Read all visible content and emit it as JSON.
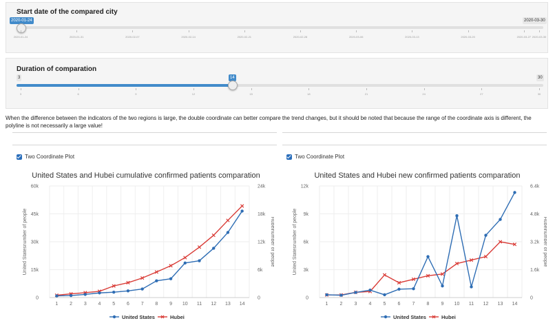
{
  "slider_start": {
    "label": "Start date of the compared city",
    "min": "2020-01-24",
    "max": "2020-03-30",
    "value": "2020-01-24",
    "ticks": [
      "2020-01-24",
      "2020-01-31",
      "2020-02-07",
      "2020-02-14",
      "2020-02-21",
      "2020-02-28",
      "2020-03-06",
      "2020-03-13",
      "2020-03-20",
      "2020-03-27",
      "2020-03-30"
    ]
  },
  "slider_duration": {
    "label": "Duration of comparation",
    "min": "3",
    "max": "30",
    "value": "14",
    "ticks": [
      "3",
      "6",
      "9",
      "12",
      "15",
      "18",
      "21",
      "24",
      "27",
      "30"
    ]
  },
  "note": "When the difference between the indicators of the two regions is large, the double coordinate can better compare the trend changes, but it should be noted that because the range of the coordinate axis is different, the polyline is not necessarily a large value!",
  "left_panel": {
    "checkbox_label": "Two Coordinate Plot",
    "checked": true
  },
  "right_panel": {
    "checkbox_label": "Two Coordinate Plot",
    "checked": true
  },
  "colors": {
    "us": "#2e6db4",
    "hubei": "#d93b36",
    "accent": "#428bca"
  },
  "chart_data": [
    {
      "type": "line",
      "title": "United States and Hubei cumulative confirmed patients comparation",
      "ylabel": "United Statesnumber of people",
      "y2label": "Hubeinumber of people",
      "x": [
        1,
        2,
        3,
        4,
        5,
        6,
        7,
        8,
        9,
        10,
        11,
        12,
        13,
        14
      ],
      "ylim": [
        0,
        60000
      ],
      "y2lim": [
        0,
        24000
      ],
      "y_ticks": [
        "0",
        "15k",
        "30k",
        "45k",
        "60k"
      ],
      "y2_ticks": [
        "0",
        "6k",
        "12k",
        "18k",
        "24k"
      ],
      "series": [
        {
          "name": "United States",
          "axis": "left",
          "values": [
            900,
            1100,
            1700,
            2500,
            2900,
            3600,
            4600,
            9000,
            10100,
            18600,
            19800,
            26500,
            35000,
            46500
          ]
        },
        {
          "name": "Hubei",
          "axis": "right",
          "values": [
            500,
            800,
            1050,
            1350,
            2500,
            3200,
            4200,
            5500,
            6850,
            8600,
            10850,
            13400,
            16600,
            19700
          ]
        }
      ],
      "legend": "bottom"
    },
    {
      "type": "line",
      "title": "United States and Hubei new confirmed patients comparation",
      "ylabel": "United Statesnumber of people",
      "y2label": "Hubeinumber of people",
      "x": [
        1,
        2,
        3,
        4,
        5,
        6,
        7,
        8,
        9,
        10,
        11,
        12,
        13,
        14
      ],
      "ylim": [
        0,
        12000
      ],
      "y2lim": [
        0,
        6400
      ],
      "y_ticks": [
        "0",
        "3k",
        "6k",
        "9k",
        "12k"
      ],
      "y2_ticks": [
        "0",
        "1.6k",
        "3.2k",
        "4.8k",
        "6.4k"
      ],
      "series": [
        {
          "name": "United States",
          "axis": "left",
          "values": [
            300,
            250,
            550,
            800,
            300,
            900,
            950,
            4400,
            1250,
            8800,
            1150,
            6700,
            8400,
            11300
          ]
        },
        {
          "name": "Hubei",
          "axis": "right",
          "values": [
            150,
            150,
            300,
            350,
            1300,
            850,
            1050,
            1250,
            1350,
            1950,
            2150,
            2350,
            3200,
            3050
          ]
        }
      ],
      "legend": "bottom"
    }
  ]
}
